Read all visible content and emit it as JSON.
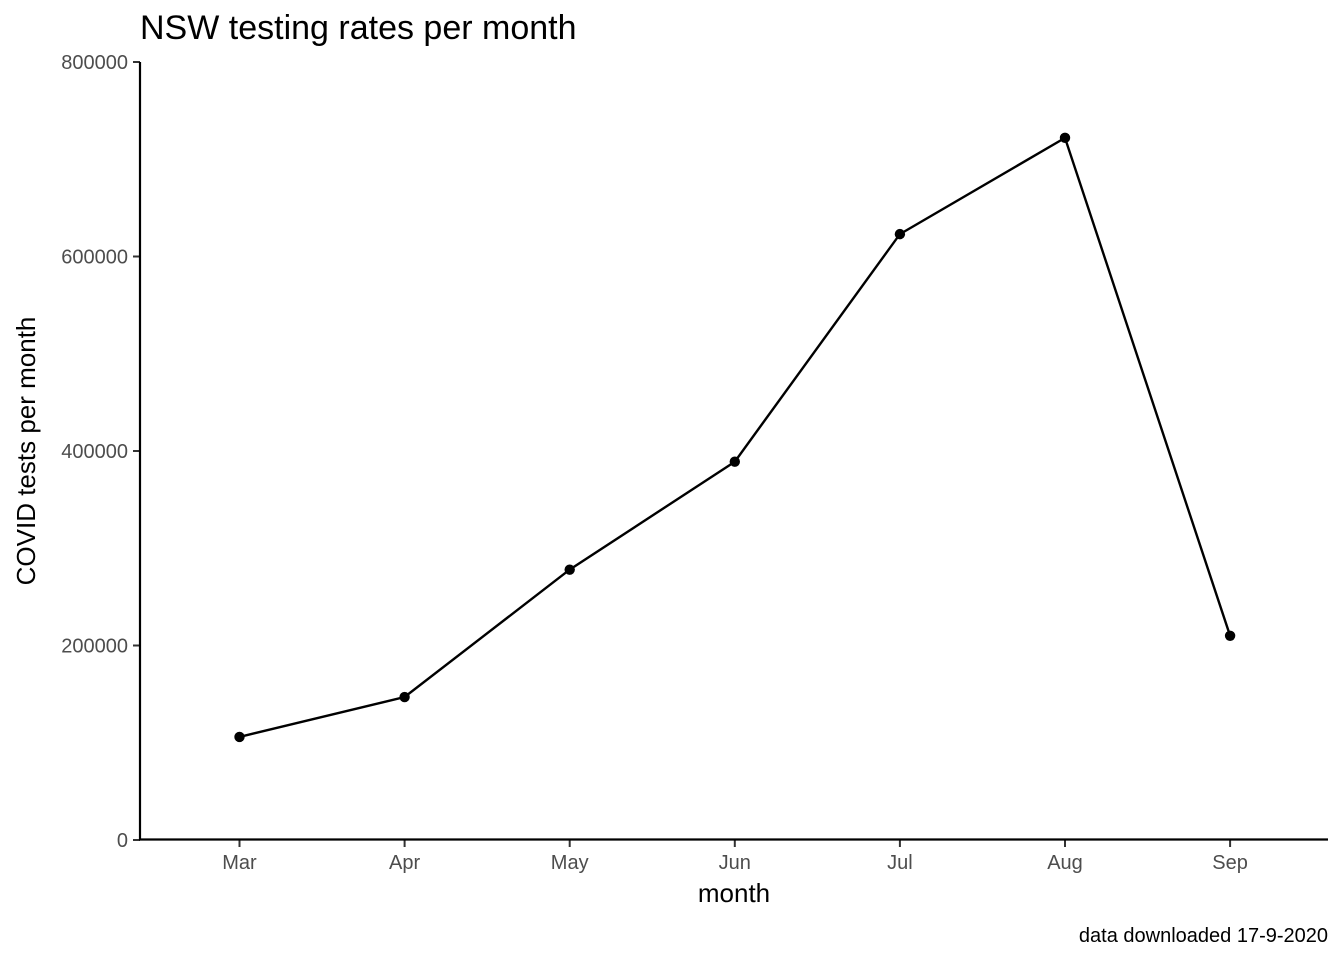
{
  "chart_data": {
    "type": "line",
    "title": "NSW testing rates per month",
    "xlabel": "month",
    "ylabel": "COVID tests per month",
    "caption": "data downloaded 17-9-2020",
    "categories": [
      "Mar",
      "Apr",
      "May",
      "Jun",
      "Jul",
      "Aug",
      "Sep"
    ],
    "values": [
      106000,
      147000,
      278000,
      389000,
      623000,
      722000,
      210000
    ],
    "ylim": [
      0,
      800000
    ],
    "yticks": [
      "0",
      "200000",
      "400000",
      "600000",
      "800000"
    ],
    "grid": false,
    "legend": "none",
    "colors": {
      "line": "#000000",
      "points": "#000000",
      "tick_labels": "#4d4d4d"
    }
  }
}
